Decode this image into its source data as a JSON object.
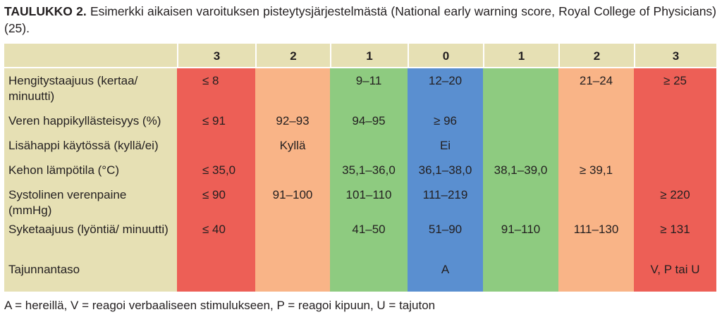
{
  "caption": {
    "label": "TAULUKKO 2.",
    "text": "Esimerkki aikaisen varoituksen pisteytysjärjestelmästä (National early warning score, Royal College of Physicians) (25)."
  },
  "table": {
    "header": [
      "",
      "3",
      "2",
      "1",
      "0",
      "1",
      "2",
      "3"
    ],
    "rows": [
      {
        "label": "Hengitystaajuus (kertaa/ minuutti)",
        "cells": [
          "≤ 8",
          "",
          "9–11",
          "12–20",
          "",
          "21–24",
          "≥ 25"
        ]
      },
      {
        "label": "Veren happikyllästeisyys (%)",
        "cells": [
          "≤ 91",
          "92–93",
          "94–95",
          "≥ 96",
          "",
          "",
          ""
        ]
      },
      {
        "label": "Lisähappi käytössä (kyllä/ei)",
        "cells": [
          "",
          "Kyllä",
          "",
          "Ei",
          "",
          "",
          ""
        ]
      },
      {
        "label": "Kehon lämpötila (°C)",
        "cells": [
          "≤ 35,0",
          "",
          "35,1–36,0",
          "36,1–38,0",
          "38,1–39,0",
          "≥ 39,1",
          ""
        ]
      },
      {
        "label": "Systolinen verenpaine (mmHg)",
        "cells": [
          "≤ 90",
          "91–100",
          "101–110",
          "111–219",
          "",
          "",
          "≥ 220"
        ]
      },
      {
        "label": "Syketaajuus (lyöntiä/ minuutti)",
        "cells": [
          "≤ 40",
          "",
          "41–50",
          "51–90",
          "91–110",
          "111–130",
          "≥ 131"
        ]
      },
      {
        "label": "Tajunnantaso",
        "cells": [
          "",
          "",
          "",
          "A",
          "",
          "",
          "V, P tai U"
        ]
      }
    ],
    "column_colors": [
      "#ed5f56",
      "#f9b487",
      "#8ecb80",
      "#5a8fd0",
      "#8ecb80",
      "#f9b487",
      "#ed5f56"
    ]
  },
  "footnote": "A = hereillä, V = reagoi verbaaliseen stimulukseen, P = reagoi kipuun, U = tajuton"
}
